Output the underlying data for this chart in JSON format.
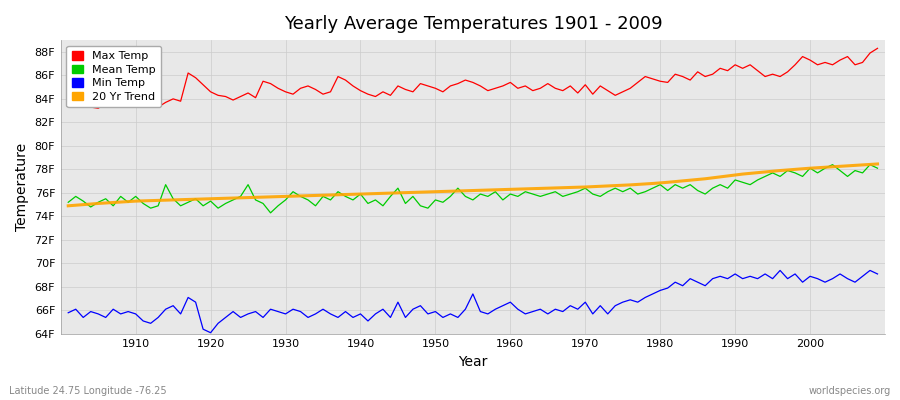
{
  "title": "Yearly Average Temperatures 1901 - 2009",
  "xlabel": "Year",
  "ylabel": "Temperature",
  "subtitle_left": "Latitude 24.75 Longitude -76.25",
  "subtitle_right": "worldspecies.org",
  "start_year": 1901,
  "end_year": 2009,
  "ylim": [
    64,
    89
  ],
  "yticks": [
    64,
    66,
    68,
    70,
    72,
    74,
    76,
    78,
    80,
    82,
    84,
    86,
    88
  ],
  "ytick_labels": [
    "64F",
    "66F",
    "68F",
    "70F",
    "72F",
    "74F",
    "76F",
    "78F",
    "80F",
    "82F",
    "84F",
    "86F",
    "88F"
  ],
  "xticks": [
    1910,
    1920,
    1930,
    1940,
    1950,
    1960,
    1970,
    1980,
    1990,
    2000
  ],
  "colors": {
    "max": "#ff0000",
    "mean": "#00cc00",
    "min": "#0000ff",
    "trend": "#ffa500",
    "plot_bg": "#e8e8e8",
    "grid": "#cccccc",
    "fig_bg": "#ffffff"
  },
  "max_temps": [
    84.0,
    83.5,
    83.8,
    83.3,
    83.2,
    83.6,
    83.4,
    83.7,
    83.9,
    84.1,
    83.8,
    83.5,
    83.3,
    83.7,
    84.0,
    83.8,
    86.2,
    85.8,
    85.2,
    84.6,
    84.3,
    84.2,
    83.9,
    84.2,
    84.5,
    84.1,
    85.5,
    85.3,
    84.9,
    84.6,
    84.4,
    84.9,
    85.1,
    84.8,
    84.4,
    84.6,
    85.9,
    85.6,
    85.1,
    84.7,
    84.4,
    84.2,
    84.6,
    84.3,
    85.1,
    84.8,
    84.6,
    85.3,
    85.1,
    84.9,
    84.6,
    85.1,
    85.3,
    85.6,
    85.4,
    85.1,
    84.7,
    84.9,
    85.1,
    85.4,
    84.9,
    85.1,
    84.7,
    84.9,
    85.3,
    84.9,
    84.7,
    85.1,
    84.5,
    85.2,
    84.4,
    85.1,
    84.7,
    84.3,
    84.6,
    84.9,
    85.4,
    85.9,
    85.7,
    85.5,
    85.4,
    86.1,
    85.9,
    85.6,
    86.3,
    85.9,
    86.1,
    86.6,
    86.4,
    86.9,
    86.6,
    86.9,
    86.4,
    85.9,
    86.1,
    85.9,
    86.3,
    86.9,
    87.6,
    87.3,
    86.9,
    87.1,
    86.9,
    87.3,
    87.6,
    86.9,
    87.1,
    87.9,
    88.3
  ],
  "mean_temps": [
    75.2,
    75.7,
    75.3,
    74.8,
    75.2,
    75.5,
    74.9,
    75.7,
    75.2,
    75.7,
    75.1,
    74.7,
    74.9,
    76.7,
    75.5,
    74.9,
    75.2,
    75.5,
    74.9,
    75.3,
    74.7,
    75.1,
    75.4,
    75.7,
    76.7,
    75.4,
    75.1,
    74.3,
    74.9,
    75.4,
    76.1,
    75.7,
    75.4,
    74.9,
    75.7,
    75.4,
    76.1,
    75.7,
    75.4,
    75.9,
    75.1,
    75.4,
    74.9,
    75.7,
    76.4,
    75.1,
    75.7,
    74.9,
    74.7,
    75.4,
    75.2,
    75.7,
    76.4,
    75.7,
    75.4,
    75.9,
    75.7,
    76.1,
    75.4,
    75.9,
    75.7,
    76.1,
    75.9,
    75.7,
    75.9,
    76.1,
    75.7,
    75.9,
    76.1,
    76.4,
    75.9,
    75.7,
    76.1,
    76.4,
    76.1,
    76.4,
    75.9,
    76.1,
    76.4,
    76.7,
    76.2,
    76.7,
    76.4,
    76.7,
    76.2,
    75.9,
    76.4,
    76.7,
    76.4,
    77.1,
    76.9,
    76.7,
    77.1,
    77.4,
    77.7,
    77.4,
    77.9,
    77.7,
    77.4,
    78.1,
    77.7,
    78.1,
    78.4,
    77.9,
    77.4,
    77.9,
    77.7,
    78.4,
    78.1
  ],
  "min_temps": [
    65.8,
    66.1,
    65.4,
    65.9,
    65.7,
    65.4,
    66.1,
    65.7,
    65.9,
    65.7,
    65.1,
    64.9,
    65.4,
    66.1,
    66.4,
    65.7,
    67.1,
    66.7,
    64.4,
    64.1,
    64.9,
    65.4,
    65.9,
    65.4,
    65.7,
    65.9,
    65.4,
    66.1,
    65.9,
    65.7,
    66.1,
    65.9,
    65.4,
    65.7,
    66.1,
    65.7,
    65.4,
    65.9,
    65.4,
    65.7,
    65.1,
    65.7,
    66.1,
    65.4,
    66.7,
    65.4,
    66.1,
    66.4,
    65.7,
    65.9,
    65.4,
    65.7,
    65.4,
    66.1,
    67.4,
    65.9,
    65.7,
    66.1,
    66.4,
    66.7,
    66.1,
    65.7,
    65.9,
    66.1,
    65.7,
    66.1,
    65.9,
    66.4,
    66.1,
    66.7,
    65.7,
    66.4,
    65.7,
    66.4,
    66.7,
    66.9,
    66.7,
    67.1,
    67.4,
    67.7,
    67.9,
    68.4,
    68.1,
    68.7,
    68.4,
    68.1,
    68.7,
    68.9,
    68.7,
    69.1,
    68.7,
    68.9,
    68.7,
    69.1,
    68.7,
    69.4,
    68.7,
    69.1,
    68.4,
    68.9,
    68.7,
    68.4,
    68.7,
    69.1,
    68.7,
    68.4,
    68.9,
    69.4,
    69.1
  ],
  "trend_values": [
    74.9,
    74.95,
    75.0,
    75.05,
    75.1,
    75.14,
    75.18,
    75.22,
    75.26,
    75.3,
    75.32,
    75.34,
    75.36,
    75.38,
    75.4,
    75.42,
    75.44,
    75.46,
    75.48,
    75.5,
    75.52,
    75.54,
    75.56,
    75.58,
    75.6,
    75.62,
    75.64,
    75.66,
    75.68,
    75.7,
    75.72,
    75.74,
    75.76,
    75.78,
    75.8,
    75.82,
    75.84,
    75.86,
    75.88,
    75.9,
    75.92,
    75.94,
    75.96,
    75.98,
    76.0,
    76.02,
    76.04,
    76.06,
    76.08,
    76.1,
    76.12,
    76.14,
    76.16,
    76.18,
    76.2,
    76.22,
    76.24,
    76.26,
    76.28,
    76.3,
    76.32,
    76.34,
    76.36,
    76.38,
    76.4,
    76.42,
    76.44,
    76.46,
    76.48,
    76.5,
    76.53,
    76.56,
    76.59,
    76.62,
    76.65,
    76.68,
    76.72,
    76.76,
    76.8,
    76.85,
    76.9,
    76.96,
    77.02,
    77.08,
    77.14,
    77.2,
    77.28,
    77.36,
    77.44,
    77.52,
    77.6,
    77.66,
    77.72,
    77.78,
    77.84,
    77.9,
    77.95,
    78.0,
    78.05,
    78.1,
    78.14,
    78.18,
    78.22,
    78.26,
    78.3,
    78.34,
    78.38,
    78.42,
    78.46
  ]
}
